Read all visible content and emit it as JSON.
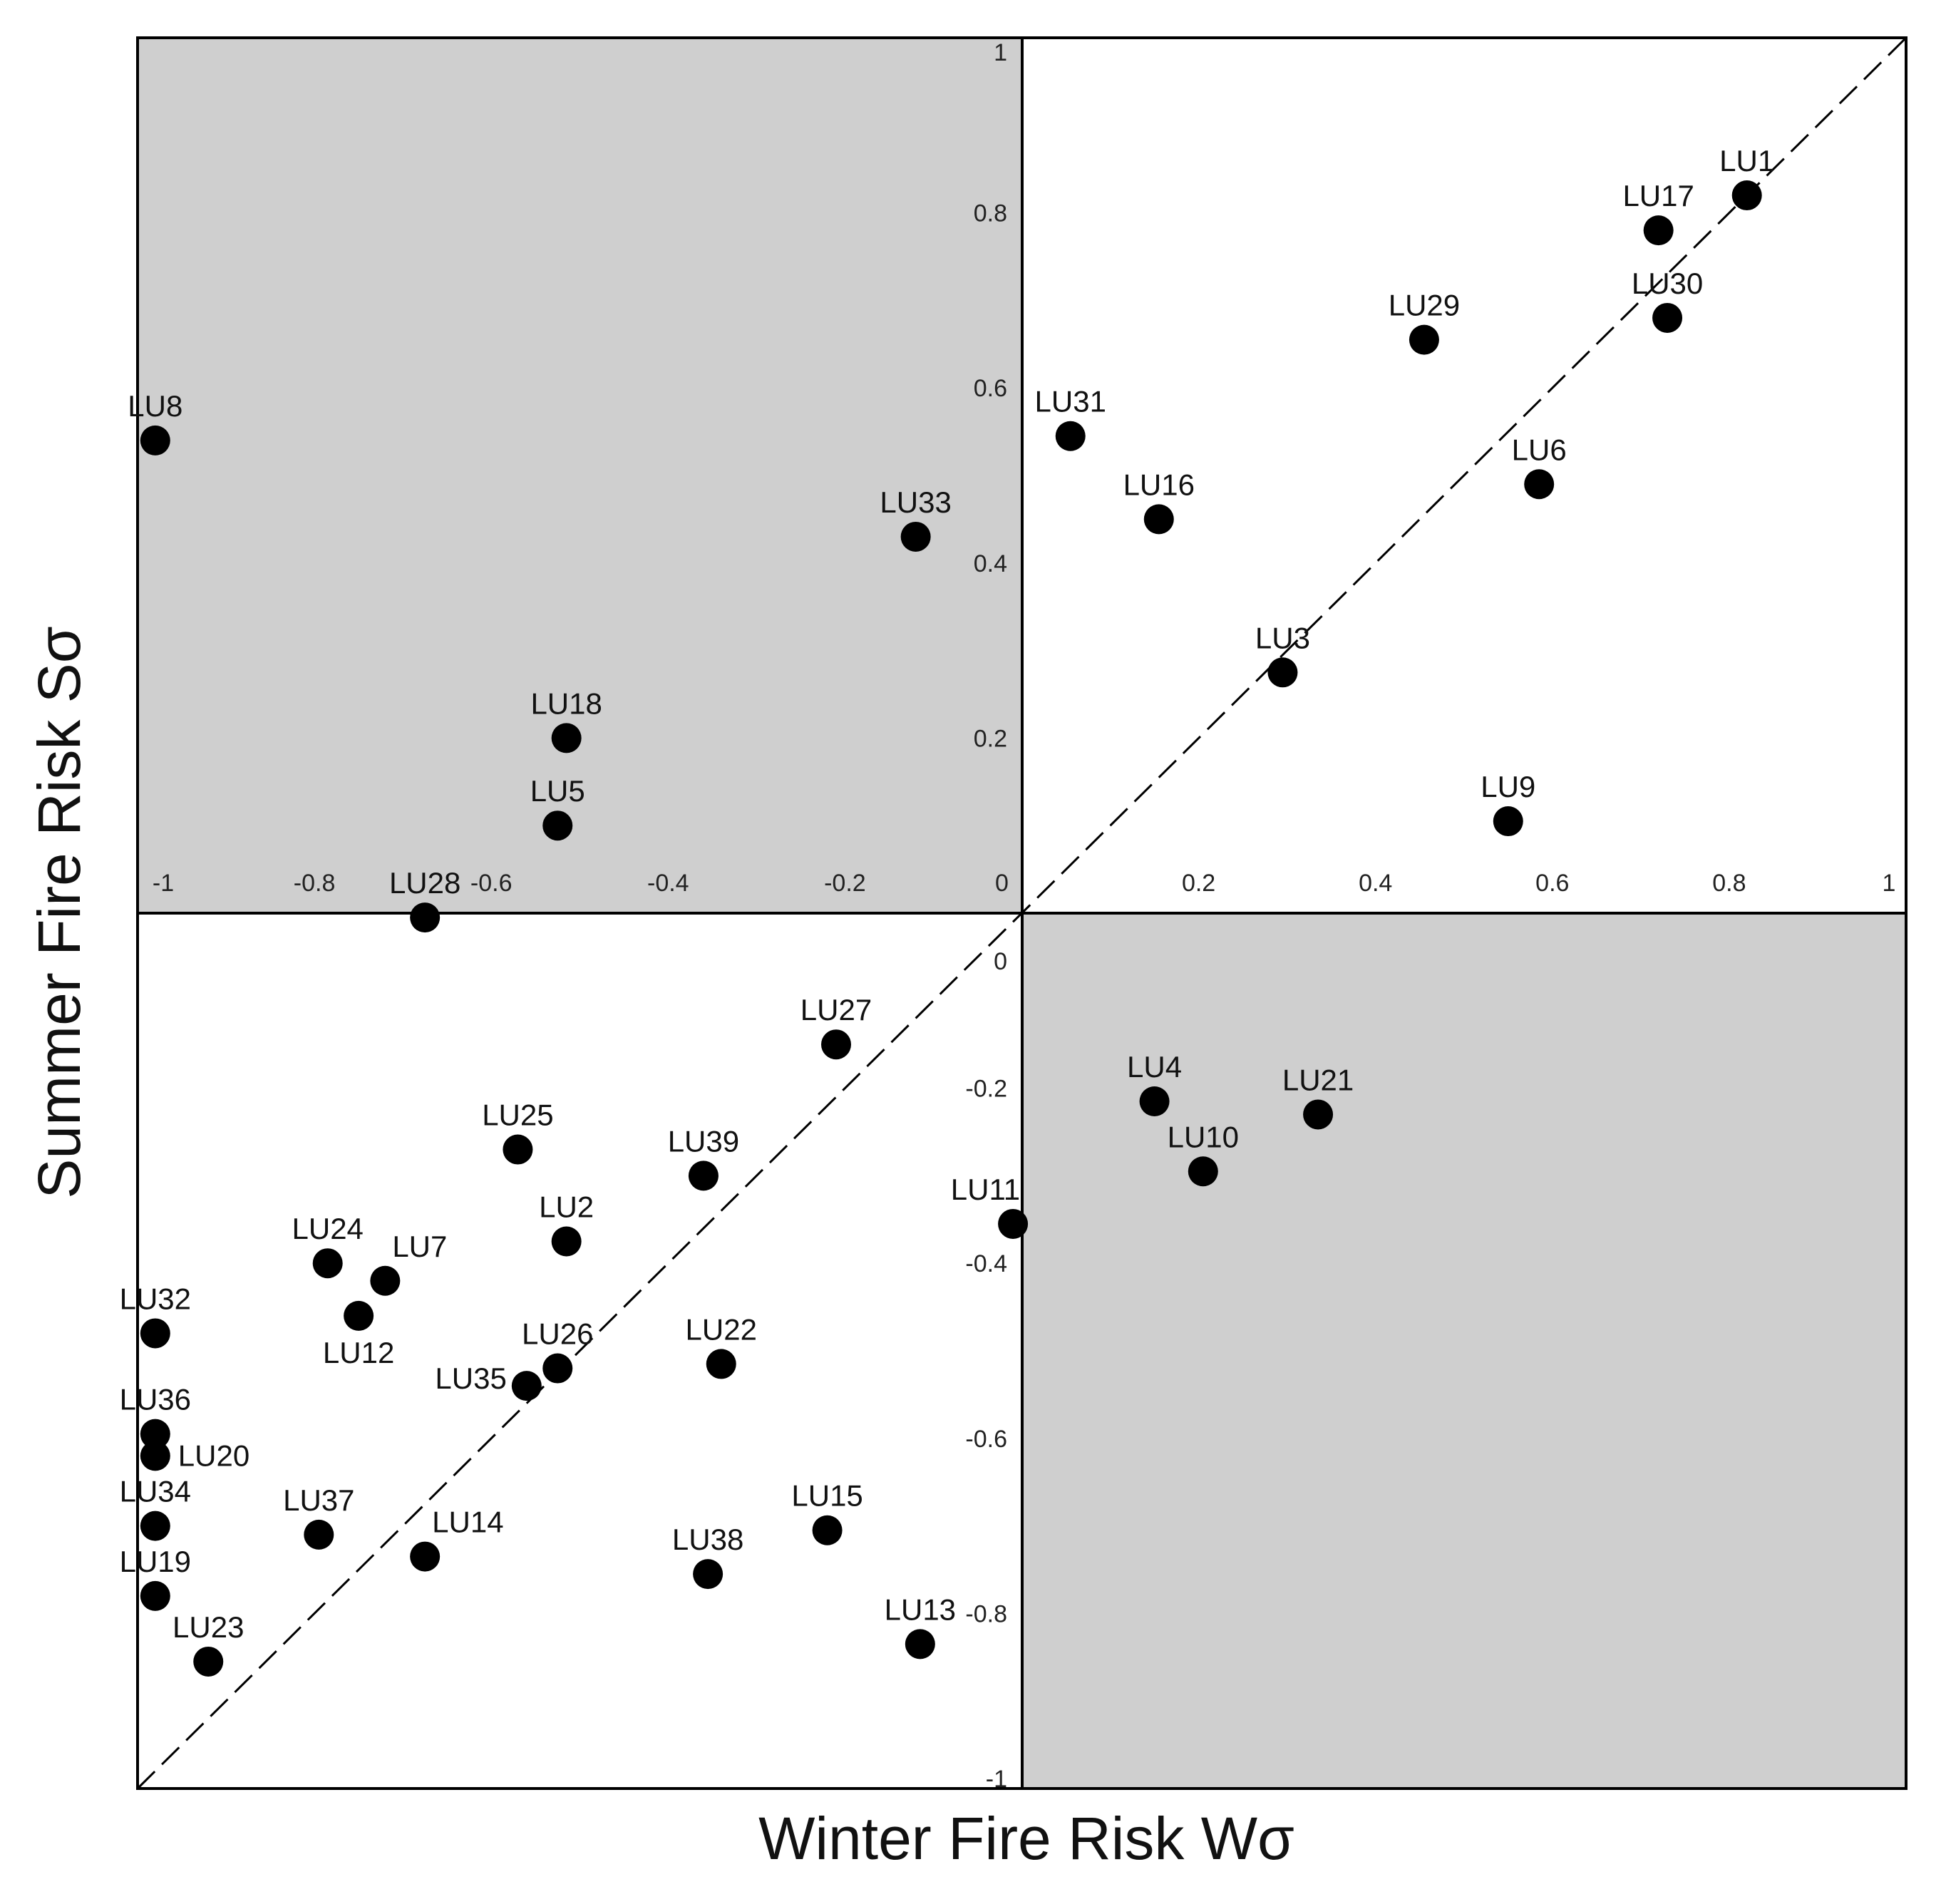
{
  "chart_data": {
    "type": "scatter",
    "xlabel": "Winter Fire Risk  Wσ",
    "ylabel": "Summer Fire Risk  Sσ",
    "xlim": [
      -1,
      1
    ],
    "ylim": [
      -1,
      1
    ],
    "xticks": [
      "-1",
      "-0.8",
      "-0.6",
      "-0.4",
      "-0.2",
      "0",
      "0.2",
      "0.4",
      "0.6",
      "0.8",
      "1"
    ],
    "yticks": [
      "1",
      "0.8",
      "0.6",
      "0.4",
      "0.2",
      "0",
      "-0.2",
      "-0.4",
      "-0.6",
      "-0.8",
      "-1"
    ],
    "shaded_quadrants": [
      "top-left",
      "bottom-right"
    ],
    "diagonal_line": "dashed y = x",
    "colors": {
      "shade": "#cfcfcf",
      "point": "#000000",
      "axis": "#000000"
    },
    "points": [
      {
        "label": "LU1",
        "x": 0.82,
        "y": 0.82,
        "label_pos": "above"
      },
      {
        "label": "LU17",
        "x": 0.72,
        "y": 0.78,
        "label_pos": "above"
      },
      {
        "label": "LU30",
        "x": 0.73,
        "y": 0.68,
        "label_pos": "above"
      },
      {
        "label": "LU29",
        "x": 0.455,
        "y": 0.655,
        "label_pos": "above"
      },
      {
        "label": "LU31",
        "x": 0.055,
        "y": 0.545,
        "label_pos": "above"
      },
      {
        "label": "LU6",
        "x": 0.585,
        "y": 0.49,
        "label_pos": "above"
      },
      {
        "label": "LU16",
        "x": 0.155,
        "y": 0.45,
        "label_pos": "above"
      },
      {
        "label": "LU3",
        "x": 0.295,
        "y": 0.275,
        "label_pos": "above"
      },
      {
        "label": "LU9",
        "x": 0.55,
        "y": 0.105,
        "label_pos": "above"
      },
      {
        "label": "LU8",
        "x": -0.98,
        "y": 0.54,
        "label_pos": "above"
      },
      {
        "label": "LU33",
        "x": -0.12,
        "y": 0.43,
        "label_pos": "above"
      },
      {
        "label": "LU18",
        "x": -0.515,
        "y": 0.2,
        "label_pos": "above"
      },
      {
        "label": "LU5",
        "x": -0.525,
        "y": 0.1,
        "label_pos": "above"
      },
      {
        "label": "LU28",
        "x": -0.675,
        "y": -0.005,
        "label_pos": "above"
      },
      {
        "label": "LU4",
        "x": 0.15,
        "y": -0.215,
        "label_pos": "above"
      },
      {
        "label": "LU21",
        "x": 0.335,
        "y": -0.23,
        "label_pos": "above"
      },
      {
        "label": "LU10",
        "x": 0.205,
        "y": -0.295,
        "label_pos": "above"
      },
      {
        "label": "LU11",
        "x": -0.01,
        "y": -0.355,
        "label_pos": "above-left"
      },
      {
        "label": "LU27",
        "x": -0.21,
        "y": -0.15,
        "label_pos": "above"
      },
      {
        "label": "LU25",
        "x": -0.57,
        "y": -0.27,
        "label_pos": "above"
      },
      {
        "label": "LU39",
        "x": -0.36,
        "y": -0.3,
        "label_pos": "above"
      },
      {
        "label": "LU2",
        "x": -0.515,
        "y": -0.375,
        "label_pos": "above"
      },
      {
        "label": "LU24",
        "x": -0.785,
        "y": -0.4,
        "label_pos": "above"
      },
      {
        "label": "LU7",
        "x": -0.72,
        "y": -0.42,
        "label_pos": "above-right"
      },
      {
        "label": "LU12",
        "x": -0.75,
        "y": -0.46,
        "label_pos": "below"
      },
      {
        "label": "LU32",
        "x": -0.98,
        "y": -0.48,
        "label_pos": "above"
      },
      {
        "label": "LU26",
        "x": -0.525,
        "y": -0.52,
        "label_pos": "above"
      },
      {
        "label": "LU35",
        "x": -0.56,
        "y": -0.54,
        "label_pos": "left"
      },
      {
        "label": "LU22",
        "x": -0.34,
        "y": -0.515,
        "label_pos": "above"
      },
      {
        "label": "LU36",
        "x": -0.98,
        "y": -0.595,
        "label_pos": "above"
      },
      {
        "label": "LU20",
        "x": -0.98,
        "y": -0.62,
        "label_pos": "right"
      },
      {
        "label": "LU34",
        "x": -0.98,
        "y": -0.7,
        "label_pos": "above"
      },
      {
        "label": "LU37",
        "x": -0.795,
        "y": -0.71,
        "label_pos": "above"
      },
      {
        "label": "LU15",
        "x": -0.22,
        "y": -0.705,
        "label_pos": "above"
      },
      {
        "label": "LU14",
        "x": -0.675,
        "y": -0.735,
        "label_pos": "above-right"
      },
      {
        "label": "LU38",
        "x": -0.355,
        "y": -0.755,
        "label_pos": "above"
      },
      {
        "label": "LU19",
        "x": -0.98,
        "y": -0.78,
        "label_pos": "above"
      },
      {
        "label": "LU13",
        "x": -0.115,
        "y": -0.835,
        "label_pos": "above"
      },
      {
        "label": "LU23",
        "x": -0.92,
        "y": -0.855,
        "label_pos": "above"
      }
    ]
  }
}
